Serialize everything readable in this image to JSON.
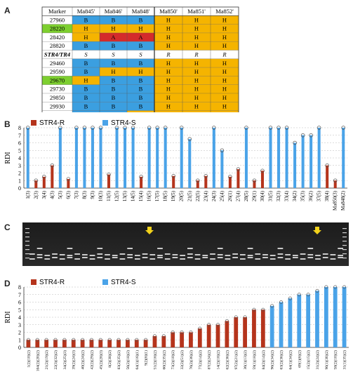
{
  "panels": {
    "a": "A",
    "b": "B",
    "c": "C",
    "d": "D"
  },
  "table": {
    "header": [
      "Marker",
      "Ma845'",
      "Ma846'",
      "Ma848'",
      "Ma850'",
      "Ma851'",
      "Ma852'"
    ],
    "rows": [
      {
        "marker": "27960",
        "cells": [
          "B",
          "B",
          "B",
          "H",
          "H",
          "H"
        ]
      },
      {
        "marker": "28220",
        "cells": [
          "H",
          "H",
          "H",
          "H",
          "H",
          "H"
        ]
      },
      {
        "marker": "28420",
        "cells": [
          "H",
          "A",
          "A",
          "H",
          "H",
          "H"
        ]
      },
      {
        "marker": "28820",
        "cells": [
          "B",
          "B",
          "B",
          "H",
          "H",
          "H"
        ]
      },
      {
        "marker": "STR4/TR4",
        "cells": [
          "S",
          "S",
          "S",
          "R",
          "R",
          "R"
        ]
      },
      {
        "marker": "29460",
        "cells": [
          "B",
          "B",
          "B",
          "H",
          "H",
          "H"
        ]
      },
      {
        "marker": "29590",
        "cells": [
          "B",
          "H",
          "H",
          "H",
          "H",
          "H"
        ]
      },
      {
        "marker": "29670",
        "cells": [
          "H",
          "B",
          "B",
          "H",
          "H",
          "H"
        ]
      },
      {
        "marker": "29730",
        "cells": [
          "B",
          "B",
          "B",
          "H",
          "H",
          "H"
        ]
      },
      {
        "marker": "29850",
        "cells": [
          "B",
          "B",
          "B",
          "H",
          "H",
          "H"
        ]
      },
      {
        "marker": "29930",
        "cells": [
          "B",
          "B",
          "B",
          "H",
          "H",
          "H"
        ]
      },
      {
        "marker": "30000",
        "cells": [
          "B",
          "B",
          "H",
          "H",
          "H",
          "H"
        ]
      }
    ],
    "colors": {
      "B": "#3b9fe0",
      "H": "#f5b400",
      "A": "#d42b2b",
      "STR": "#ffffff",
      "green": "#7dcf2f"
    }
  },
  "chart_data": [
    {
      "type": "bar",
      "panel": "B",
      "title": "",
      "ylabel": "RDI",
      "ylim": [
        0,
        8
      ],
      "legend": [
        {
          "name": "STR4-R",
          "color": "#b5341c"
        },
        {
          "name": "STR4-S",
          "color": "#4aa3e8"
        }
      ],
      "categories": [
        "1(3)",
        "2(3)",
        "3(4)",
        "4(3)",
        "5(3)",
        "6(3)",
        "7(3)",
        "8(3)",
        "9(3)",
        "10(3)",
        "11(5)",
        "12(5)",
        "13(5)",
        "14(5)",
        "15(4)",
        "16(5)",
        "17(5)",
        "18(5)",
        "19(5)",
        "20(5)",
        "21(5)",
        "22(5)",
        "23(4)",
        "24(3)",
        "25(4)",
        "26(1)",
        "27(4)",
        "28(5)",
        "29(1)",
        "30(4)",
        "31(5)",
        "32(3)",
        "33(4)",
        "34(2)",
        "35(3)",
        "36(2)",
        "37(5)",
        "38(4)",
        "Ma850(3)",
        "Ma848(2)"
      ],
      "values": [
        8,
        1,
        1.5,
        3,
        8,
        1.2,
        8,
        8,
        8,
        8,
        1.8,
        8,
        8,
        8,
        1.5,
        8,
        8,
        8,
        1.6,
        8,
        6.5,
        1,
        1.6,
        8,
        5,
        1.5,
        2.5,
        8,
        1,
        2.3,
        8,
        8,
        8,
        6,
        7,
        7,
        8,
        3,
        1,
        8
      ],
      "resistant": [
        false,
        true,
        true,
        true,
        false,
        true,
        false,
        false,
        false,
        false,
        true,
        false,
        false,
        false,
        true,
        false,
        false,
        false,
        true,
        false,
        false,
        true,
        true,
        false,
        false,
        true,
        true,
        false,
        true,
        true,
        false,
        false,
        false,
        false,
        false,
        false,
        false,
        true,
        true,
        false
      ]
    },
    {
      "type": "bar",
      "panel": "D",
      "ylabel": "RDI",
      "ylim": [
        0,
        8
      ],
      "legend": [
        {
          "name": "STR4-R",
          "color": "#b5341c"
        },
        {
          "name": "STR4-S",
          "color": "#4aa3e8"
        }
      ],
      "categories": [
        "1(2)(10)(2)",
        "104(2)(20)(2)",
        "21(2)(19)(2)",
        "22(3)(32)(2)",
        "34(2)(25)(3)",
        "39(2)(24)(3)",
        "40(2)(24)(2)",
        "42(2)(29)(2)",
        "45(2)(28)(3)",
        "8(2)(38)(2)",
        "83(2)(35)(2)",
        "56(2)(18)(2)",
        "64(1)(16)(1)",
        "9(2)(6)(1)",
        "51(2)(16)(2)",
        "60(2)(35)(2)",
        "73(2)(10)(2)",
        "32(2)(51)(2)",
        "76(2)(36)(2)",
        "77(2)(14)(2)",
        "87(2)(24)(2)",
        "14(2)(18)(2)",
        "62(2)(36)(2)",
        "97(2)(21)(2)",
        "36(1)(13)(2)",
        "59(1)(18)(2)",
        "84(2)(14)(2)",
        "96(2)(34)(2)",
        "63(2)(36)(2)",
        "64(1)(34)(2)",
        "69(1)(6)(2)",
        "15(2)(15)(2)",
        "31(2)(24)(2)",
        "96(1)(36)(2)",
        "58(2)(10)(2)",
        "31(1)(35)(2)"
      ],
      "values": [
        1,
        1,
        1,
        1,
        1,
        1,
        1,
        1,
        1,
        1,
        1,
        1,
        1,
        1,
        1.5,
        1.5,
        2,
        2,
        2,
        2.5,
        3,
        3,
        3.5,
        4,
        4,
        5,
        5,
        5.5,
        6,
        6.5,
        7,
        7,
        7.5,
        8,
        8,
        8
      ],
      "resistant_count": 27
    }
  ]
}
